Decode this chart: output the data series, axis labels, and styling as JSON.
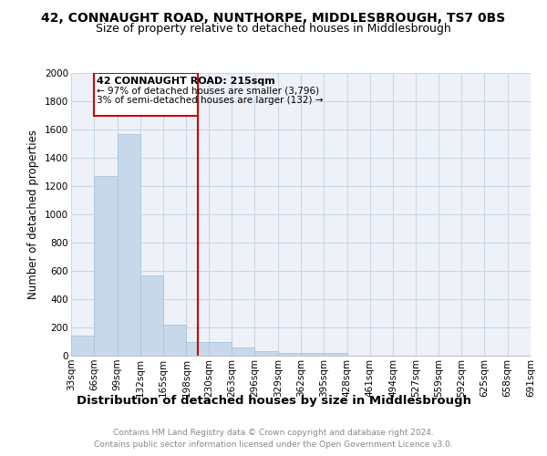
{
  "title1": "42, CONNAUGHT ROAD, NUNTHORPE, MIDDLESBROUGH, TS7 0BS",
  "title2": "Size of property relative to detached houses in Middlesbrough",
  "xlabel": "Distribution of detached houses by size in Middlesbrough",
  "ylabel": "Number of detached properties",
  "annotation_line1": "42 CONNAUGHT ROAD: 215sqm",
  "annotation_line2": "← 97% of detached houses are smaller (3,796)",
  "annotation_line3": "3% of semi-detached houses are larger (132) →",
  "bin_edges": [
    33,
    66,
    99,
    132,
    165,
    198,
    230,
    263,
    296,
    329,
    362,
    395,
    428,
    461,
    494,
    527,
    559,
    592,
    625,
    658,
    691
  ],
  "bar_heights": [
    140,
    1270,
    1570,
    570,
    220,
    100,
    100,
    60,
    30,
    20,
    20,
    20,
    0,
    0,
    0,
    0,
    0,
    0,
    0,
    0
  ],
  "bar_color": "#c8d8eb",
  "bar_edge_color": "#aac4dd",
  "vline_color": "#cc0000",
  "vline_x": 215,
  "box_edge_color": "#cc0000",
  "ylim": [
    0,
    2000
  ],
  "yticks": [
    0,
    200,
    400,
    600,
    800,
    1000,
    1200,
    1400,
    1600,
    1800,
    2000
  ],
  "grid_color": "#c8d8e8",
  "background_color": "#eef2f8",
  "footer_line1": "Contains HM Land Registry data © Crown copyright and database right 2024.",
  "footer_line2": "Contains public sector information licensed under the Open Government Licence v3.0.",
  "title1_fontsize": 10,
  "title2_fontsize": 9,
  "xlabel_fontsize": 9.5,
  "ylabel_fontsize": 8.5,
  "tick_fontsize": 7.5,
  "annotation_fontsize": 8,
  "footer_fontsize": 6.5
}
